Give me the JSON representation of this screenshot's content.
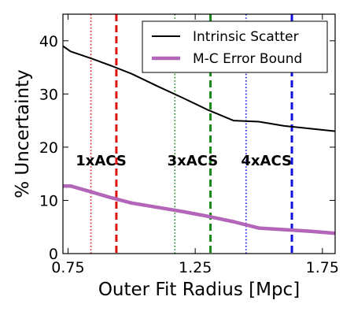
{
  "chart_data": {
    "type": "line",
    "xlabel": "Outer Fit Radius [Mpc]",
    "ylabel": "% Uncertainty",
    "xlim": [
      0.73,
      1.8
    ],
    "ylim": [
      0,
      45
    ],
    "xticks": [
      0.75,
      1.25,
      1.75
    ],
    "xtick_labels": [
      "0.75",
      "1.25",
      "1.75"
    ],
    "yticks": [
      0,
      10,
      20,
      30,
      40
    ],
    "ytick_labels": [
      "0",
      "10",
      "20",
      "30",
      "40"
    ],
    "grid": false,
    "legend_position": "top-right",
    "series": [
      {
        "name": "Intrinsic Scatter",
        "color": "#000000",
        "x": [
          0.73,
          0.76,
          0.84,
          0.92,
          1.0,
          1.1,
          1.2,
          1.3,
          1.4,
          1.5,
          1.6,
          1.7,
          1.8
        ],
        "y": [
          39.0,
          38.0,
          36.7,
          35.3,
          33.8,
          31.5,
          29.3,
          27.0,
          25.0,
          24.8,
          24.0,
          23.5,
          23.0
        ]
      },
      {
        "name": "M-C Error Bound",
        "color": "#b365b8",
        "x": [
          0.73,
          0.76,
          0.84,
          0.92,
          1.0,
          1.1,
          1.2,
          1.3,
          1.4,
          1.5,
          1.6,
          1.7,
          1.8
        ],
        "y": [
          12.7,
          12.7,
          11.6,
          10.5,
          9.5,
          8.7,
          7.9,
          7.0,
          6.0,
          4.8,
          4.5,
          4.2,
          3.8
        ]
      }
    ],
    "vlines": [
      {
        "x": 0.84,
        "color": "#e01010",
        "style": "dotted"
      },
      {
        "x": 0.94,
        "color": "#e01010",
        "style": "dashed"
      },
      {
        "x": 1.17,
        "color": "#1a8a1a",
        "style": "dotted"
      },
      {
        "x": 1.31,
        "color": "#1a8a1a",
        "style": "dashed"
      },
      {
        "x": 1.45,
        "color": "#1010e0",
        "style": "dotted"
      },
      {
        "x": 1.63,
        "color": "#1010e0",
        "style": "dashed"
      }
    ],
    "annotations": [
      {
        "text": "1xACS",
        "x": 0.88,
        "y": 17.5
      },
      {
        "text": "3xACS",
        "x": 1.24,
        "y": 17.5
      },
      {
        "text": "4xACS",
        "x": 1.53,
        "y": 17.5
      }
    ]
  }
}
